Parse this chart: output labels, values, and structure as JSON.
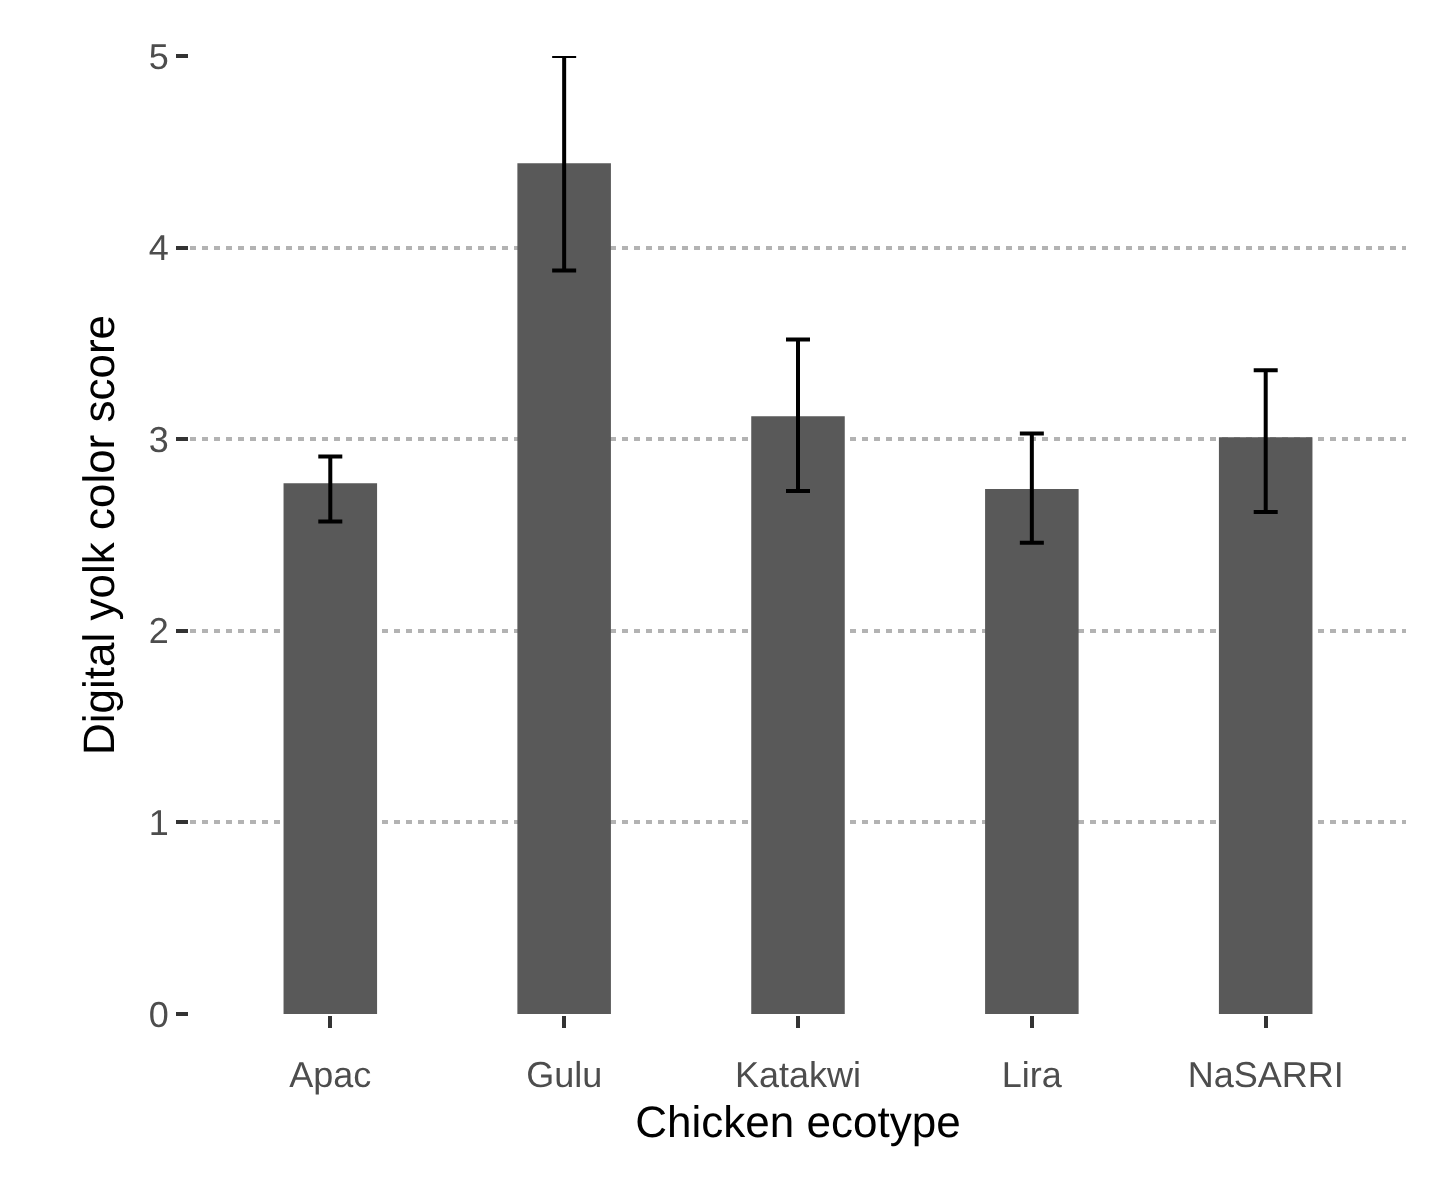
{
  "chart_data": {
    "type": "bar",
    "xlabel": "Chicken ecotype",
    "ylabel": "Digital yolk color score",
    "categories": [
      "Apac",
      "Gulu",
      "Katakwi",
      "Lira",
      "NaSARRI"
    ],
    "values": [
      2.77,
      4.44,
      3.12,
      2.74,
      3.01
    ],
    "errors": [
      [
        2.57,
        2.91
      ],
      [
        3.88,
        5.0
      ],
      [
        2.73,
        3.52
      ],
      [
        2.46,
        3.03
      ],
      [
        2.62,
        3.36
      ]
    ],
    "color": "#595959",
    "ylim": [
      0,
      5
    ],
    "yticks": [
      0,
      1,
      2,
      3,
      4,
      5
    ],
    "grid": "y",
    "legend": false
  }
}
